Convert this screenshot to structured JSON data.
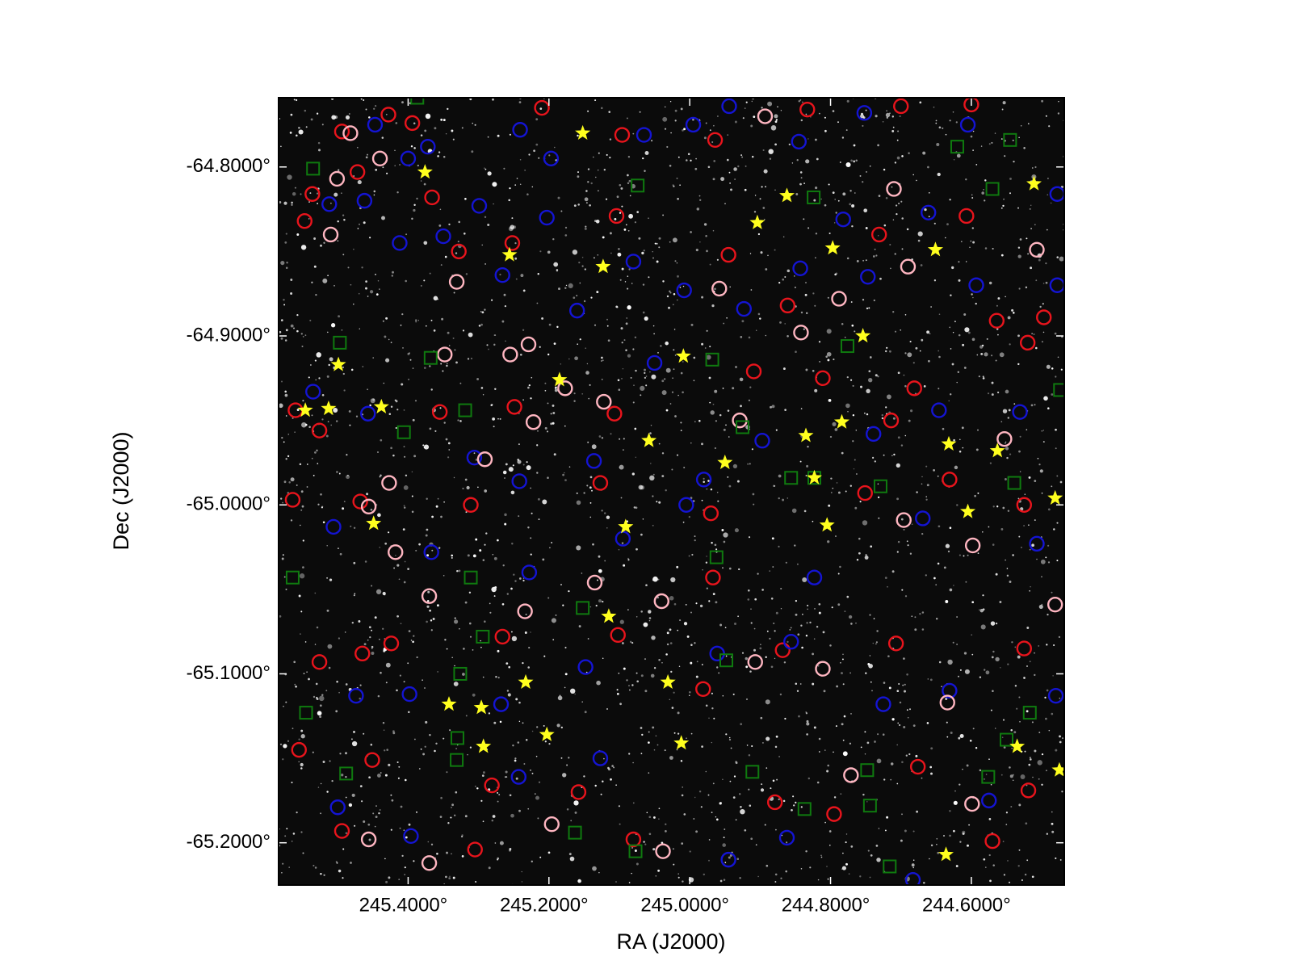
{
  "chart_data": {
    "type": "scatter",
    "x_label": "RA (J2000)",
    "y_label": "Dec (J2000)",
    "xlim": [
      245.584,
      244.468
    ],
    "ylim": [
      -65.225,
      -64.759
    ],
    "xticks": [
      {
        "value": 245.4,
        "label": "245.4000°"
      },
      {
        "value": 245.2,
        "label": "245.2000°"
      },
      {
        "value": 245.0,
        "label": "245.0000°"
      },
      {
        "value": 244.8,
        "label": "244.8000°"
      },
      {
        "value": 244.6,
        "label": "244.6000°"
      }
    ],
    "yticks": [
      {
        "value": -64.8,
        "label": "-64.8000°"
      },
      {
        "value": -64.9,
        "label": "-64.9000°"
      },
      {
        "value": -65.0,
        "label": "-65.0000°"
      },
      {
        "value": -65.1,
        "label": "-65.1000°"
      },
      {
        "value": -65.2,
        "label": "-65.2000°"
      }
    ],
    "series": [
      {
        "marker": "circle",
        "color": "#e8141c",
        "x": [
          245.494,
          245.428,
          245.394,
          245.21,
          245.096,
          244.964,
          244.833,
          244.7,
          244.6,
          245.536,
          245.547,
          245.472,
          245.366,
          245.328,
          245.252,
          245.104,
          244.945,
          244.861,
          244.731,
          244.607,
          244.564,
          244.497,
          245.56,
          245.526,
          245.355,
          245.249,
          245.107,
          244.909,
          244.811,
          244.714,
          244.681,
          244.52,
          245.564,
          245.468,
          245.311,
          245.127,
          244.97,
          244.751,
          244.631,
          244.525,
          245.526,
          245.465,
          245.424,
          245.266,
          245.102,
          244.967,
          244.868,
          244.707,
          244.525,
          245.555,
          245.451,
          245.281,
          245.158,
          244.981,
          244.879,
          244.676,
          244.57,
          245.494,
          245.305,
          245.08,
          244.795,
          244.519
        ],
        "y": [
          -64.779,
          -64.769,
          -64.774,
          -64.765,
          -64.781,
          -64.784,
          -64.766,
          -64.764,
          -64.763,
          -64.816,
          -64.832,
          -64.803,
          -64.818,
          -64.85,
          -64.845,
          -64.829,
          -64.852,
          -64.882,
          -64.84,
          -64.829,
          -64.891,
          -64.889,
          -64.944,
          -64.956,
          -64.945,
          -64.942,
          -64.946,
          -64.921,
          -64.925,
          -64.95,
          -64.931,
          -64.904,
          -64.997,
          -64.998,
          -65.0,
          -64.987,
          -65.005,
          -64.993,
          -64.985,
          -65.0,
          -65.093,
          -65.088,
          -65.082,
          -65.078,
          -65.077,
          -65.043,
          -65.086,
          -65.082,
          -65.085,
          -65.145,
          -65.151,
          -65.166,
          -65.17,
          -65.109,
          -65.176,
          -65.155,
          -65.199,
          -65.193,
          -65.204,
          -65.198,
          -65.183,
          -65.169
        ]
      },
      {
        "marker": "circle",
        "color": "#1414d2",
        "x": [
          245.447,
          245.4,
          245.372,
          245.241,
          245.197,
          245.065,
          244.995,
          244.944,
          244.845,
          244.752,
          244.605,
          244.478,
          245.512,
          245.462,
          245.412,
          245.35,
          245.299,
          245.266,
          245.203,
          245.16,
          245.08,
          245.008,
          244.923,
          244.843,
          244.782,
          244.747,
          244.661,
          244.593,
          244.478,
          245.535,
          245.457,
          245.306,
          245.242,
          245.136,
          245.05,
          244.98,
          244.897,
          244.739,
          244.646,
          244.531,
          245.506,
          245.367,
          245.228,
          245.095,
          245.005,
          244.823,
          244.669,
          244.507,
          245.474,
          245.398,
          245.268,
          245.148,
          244.961,
          244.856,
          244.725,
          244.631,
          244.48,
          245.5,
          245.396,
          245.243,
          245.127,
          244.945,
          244.862,
          244.683,
          244.575
        ],
        "y": [
          -64.775,
          -64.795,
          -64.788,
          -64.778,
          -64.795,
          -64.781,
          -64.775,
          -64.764,
          -64.785,
          -64.768,
          -64.775,
          -64.816,
          -64.822,
          -64.82,
          -64.845,
          -64.841,
          -64.823,
          -64.864,
          -64.83,
          -64.885,
          -64.856,
          -64.873,
          -64.884,
          -64.86,
          -64.831,
          -64.865,
          -64.827,
          -64.87,
          -64.87,
          -64.933,
          -64.946,
          -64.972,
          -64.986,
          -64.974,
          -64.916,
          -64.985,
          -64.962,
          -64.958,
          -64.944,
          -64.945,
          -65.013,
          -65.028,
          -65.04,
          -65.02,
          -65.0,
          -65.043,
          -65.008,
          -65.023,
          -65.113,
          -65.112,
          -65.118,
          -65.096,
          -65.088,
          -65.081,
          -65.118,
          -65.11,
          -65.113,
          -65.179,
          -65.196,
          -65.161,
          -65.15,
          -65.21,
          -65.197,
          -65.222,
          -65.175
        ]
      },
      {
        "marker": "circle",
        "color": "#ffb6c1",
        "x": [
          245.482,
          245.44,
          245.501,
          245.51,
          245.331,
          245.255,
          245.229,
          245.348,
          245.222,
          245.291,
          245.177,
          245.122,
          245.427,
          245.456,
          245.418,
          245.37,
          245.234,
          245.135,
          245.04,
          244.958,
          244.842,
          244.788,
          244.71,
          244.69,
          244.507,
          244.553,
          244.696,
          244.598,
          244.481,
          244.634,
          244.907,
          244.811,
          244.771,
          244.599,
          245.456,
          245.37,
          245.196,
          245.038,
          244.893,
          244.929
        ],
        "y": [
          -64.78,
          -64.795,
          -64.807,
          -64.84,
          -64.868,
          -64.911,
          -64.905,
          -64.911,
          -64.951,
          -64.973,
          -64.931,
          -64.939,
          -64.987,
          -65.001,
          -65.028,
          -65.054,
          -65.063,
          -65.046,
          -65.057,
          -64.872,
          -64.898,
          -64.878,
          -64.813,
          -64.859,
          -64.849,
          -64.961,
          -65.009,
          -65.024,
          -65.059,
          -65.117,
          -65.093,
          -65.097,
          -65.16,
          -65.177,
          -65.198,
          -65.212,
          -65.189,
          -65.205,
          -64.77,
          -64.95
        ]
      },
      {
        "marker": "square",
        "color": "#0f7a0f",
        "x": [
          245.535,
          245.387,
          245.074,
          244.62,
          244.545,
          244.57,
          244.824,
          245.497,
          245.368,
          244.968,
          244.776,
          244.474,
          245.319,
          245.406,
          244.925,
          244.856,
          244.823,
          244.729,
          244.539,
          245.564,
          245.311,
          244.962,
          245.152,
          245.294,
          245.326,
          244.948,
          245.545,
          245.33,
          245.331,
          245.488,
          244.911,
          244.748,
          244.55,
          244.576,
          244.517,
          244.837,
          244.744,
          245.163,
          245.077,
          244.716
        ],
        "y": [
          -64.801,
          -64.759,
          -64.811,
          -64.788,
          -64.784,
          -64.813,
          -64.818,
          -64.904,
          -64.913,
          -64.914,
          -64.906,
          -64.932,
          -64.944,
          -64.957,
          -64.954,
          -64.984,
          -64.984,
          -64.989,
          -64.987,
          -65.043,
          -65.043,
          -65.031,
          -65.061,
          -65.078,
          -65.1,
          -65.092,
          -65.123,
          -65.138,
          -65.151,
          -65.159,
          -65.158,
          -65.157,
          -65.139,
          -65.161,
          -65.123,
          -65.18,
          -65.178,
          -65.194,
          -65.205,
          -65.214
        ]
      },
      {
        "marker": "star",
        "color": "#ffff1e",
        "x": [
          245.152,
          245.376,
          244.511,
          244.862,
          244.904,
          244.797,
          244.651,
          245.256,
          245.123,
          244.754,
          245.499,
          245.009,
          245.185,
          245.546,
          245.513,
          245.438,
          244.784,
          244.835,
          245.058,
          244.632,
          244.563,
          244.95,
          244.823,
          244.481,
          244.605,
          245.449,
          245.091,
          244.805,
          245.115,
          245.233,
          245.031,
          245.342,
          245.296,
          245.293,
          245.203,
          245.012,
          244.535,
          244.475,
          244.636
        ],
        "y": [
          -64.78,
          -64.803,
          -64.81,
          -64.817,
          -64.833,
          -64.848,
          -64.849,
          -64.852,
          -64.859,
          -64.9,
          -64.917,
          -64.912,
          -64.926,
          -64.944,
          -64.943,
          -64.942,
          -64.951,
          -64.959,
          -64.962,
          -64.964,
          -64.968,
          -64.975,
          -64.984,
          -64.996,
          -65.004,
          -65.011,
          -65.013,
          -65.012,
          -65.066,
          -65.105,
          -65.105,
          -65.118,
          -65.12,
          -65.143,
          -65.136,
          -65.141,
          -65.143,
          -65.157,
          -65.207
        ]
      }
    ]
  }
}
